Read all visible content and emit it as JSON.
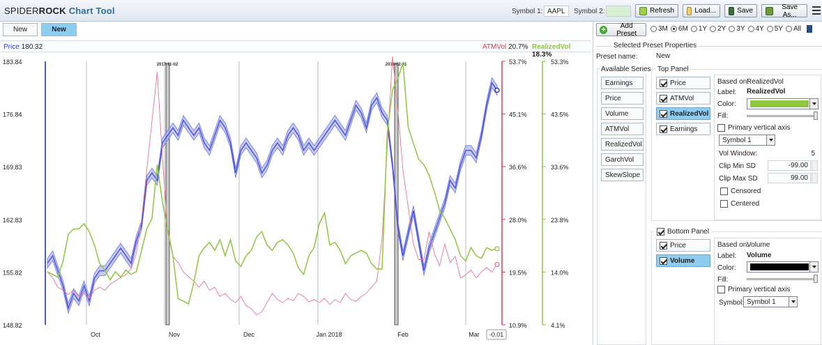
{
  "app": {
    "logo_part1": "SPIDER",
    "logo_part2": "ROCK",
    "logo_part3": "Chart Tool"
  },
  "toolbar": {
    "symbol1_label": "Symbol 1:",
    "symbol1_value": "AAPL",
    "symbol2_label": "Symbol 2:",
    "symbol2_value": "",
    "refresh_label": "Refresh",
    "load_label": "Load...",
    "save_label": "Save",
    "saveas_label": "Save As..."
  },
  "tabs": [
    {
      "label": "New"
    },
    {
      "label": "New"
    }
  ],
  "legend": {
    "price_label": "Price",
    "price_value": "180.32",
    "atmvol_label": "ATMVol",
    "atmvol_value": "20.7%",
    "realizedvol_label": "RealizedVol",
    "realizedvol_value": "18.3%",
    "price_color": "#2b3fd8",
    "atmvol_color": "#e0364a",
    "realizedvol_color": "#8dc63f"
  },
  "chart_data": {
    "type": "line",
    "x_tick_labels": [
      "Oct",
      "Nov",
      "Dec",
      "Jan 2018",
      "Feb",
      "Mar"
    ],
    "y_left_ticks": [
      "183.84",
      "176.84",
      "169.83",
      "162.83",
      "155.82",
      "148.82"
    ],
    "y_mid_ticks": [
      "53.7%",
      "45.1%",
      "36.6%",
      "28.0%",
      "19.5%",
      "10.9%"
    ],
    "y_right_ticks": [
      "53.3%",
      "43.5%",
      "33.6%",
      "23.8%",
      "14.0%",
      "4.1%"
    ],
    "y_left_range": [
      148.82,
      183.84
    ],
    "y_mid_range": [
      10.9,
      53.7
    ],
    "y_right_range": [
      4.1,
      53.3
    ],
    "earnings_markers": [
      {
        "label": "2017-11-02"
      },
      {
        "label": "2018-02-01"
      }
    ],
    "crosshair_value": "-0.01",
    "series": [
      {
        "name": "Price",
        "axis": "left",
        "color": "#4a55e0",
        "band": true,
        "values": [
          157,
          158,
          156,
          154,
          151,
          153,
          152,
          154,
          152,
          155,
          156,
          156,
          157,
          158,
          159,
          158,
          157,
          160,
          162,
          168,
          169,
          168,
          173,
          174,
          175,
          174,
          176,
          175,
          174,
          175,
          173,
          172,
          174,
          176,
          175,
          173,
          169,
          172,
          173,
          172,
          171,
          169,
          170,
          172,
          173,
          172,
          174,
          175,
          174,
          172,
          173,
          172,
          173,
          174,
          175,
          176,
          175,
          174,
          176,
          178,
          177,
          175,
          178,
          179,
          177,
          176,
          170,
          162,
          158,
          161,
          164,
          160,
          156,
          159,
          161,
          163,
          165,
          168,
          167,
          170,
          172,
          172,
          171,
          174,
          178,
          181,
          180
        ]
      },
      {
        "name": "ATMVol",
        "axis": "mid",
        "color": "#e8758a",
        "values": [
          19.5,
          18.5,
          17,
          16.5,
          15.8,
          16.5,
          15.5,
          16,
          15.2,
          16.5,
          17,
          16.5,
          17.5,
          18,
          18.6,
          19,
          20,
          22.5,
          28,
          36,
          44,
          52,
          38,
          26,
          22,
          21,
          19.5,
          18.7,
          18,
          17,
          18,
          16.5,
          17,
          15.5,
          16,
          15,
          14.5,
          15.5,
          14,
          13.5,
          12.5,
          13,
          14.5,
          16,
          15,
          14.5,
          15.2,
          14.8,
          16,
          15.5,
          14.6,
          15,
          14.5,
          15.2,
          14.2,
          15,
          14.5,
          16,
          15,
          14.7,
          15.5,
          16,
          17,
          18,
          25,
          40,
          54.5,
          46,
          36,
          30,
          24,
          21.5,
          21.5,
          26,
          22.5,
          20.5,
          24,
          21,
          22,
          18.5,
          19,
          19.8,
          18.5,
          19.5,
          20.2,
          19.5,
          20.7
        ]
      },
      {
        "name": "RealizedVol",
        "axis": "right",
        "color": "#8dc63f",
        "values": [
          14,
          13.5,
          13,
          16,
          21,
          22,
          22,
          23,
          21.5,
          19,
          15.5,
          14.3,
          12.5,
          14,
          13,
          14.3,
          13.5,
          14,
          18,
          22,
          24,
          34,
          27,
          22,
          17,
          9,
          8.5,
          8,
          12,
          17,
          18.5,
          19.5,
          18,
          20,
          17,
          20,
          16,
          15,
          17,
          18,
          20.5,
          21.5,
          19,
          18,
          19.5,
          20,
          19,
          17.5,
          14.7,
          13.5,
          17,
          18.5,
          23,
          25,
          19,
          19.5,
          18,
          15.5,
          17,
          17.5,
          18,
          17.5,
          15.5,
          14.5,
          14.5,
          40,
          48,
          50,
          53,
          41,
          38,
          35,
          34,
          32,
          29,
          25.5,
          24,
          22,
          20,
          17,
          16,
          18.5,
          17,
          16.5,
          18.5,
          18,
          18.3
        ]
      }
    ]
  },
  "panel": {
    "add_preset_label": "Add Preset",
    "ranges": [
      "3M",
      "6M",
      "1Y",
      "2Y",
      "3Y",
      "4Y",
      "5Y",
      "All"
    ],
    "selected_range": "6M",
    "selected_preset_title": "Selected Preset Properties",
    "preset_name_label": "Preset name:",
    "preset_name_value": "New",
    "available_series_title": "Available Series",
    "available_series": [
      "Earnings",
      "Price",
      "Volume",
      "ATMVol",
      "RealizedVol",
      "GarchVol",
      "SkewSlope"
    ],
    "top_panel_title": "Top Panel",
    "top_items": [
      {
        "label": "Price"
      },
      {
        "label": "ATMVol"
      },
      {
        "label": "RealizedVol"
      },
      {
        "label": "Earnings"
      }
    ],
    "top_props": {
      "based_on_label": "Based on:",
      "based_on_value": "RealizedVol",
      "label_label": "Label:",
      "label_value": "RealizedVol",
      "color_label": "Color:",
      "color_value": "#8dc63f",
      "fill_label": "Fill:",
      "fill_level": 1.0,
      "primary_axis_label": "Primary vertical axis",
      "symbol_value": "Symbol 1",
      "vol_window_label": "Vol Window:",
      "vol_window_value": "5",
      "clip_min_label": "Clip Min SD",
      "clip_min_value": "-99.00",
      "clip_max_label": "Clip Max SD",
      "clip_max_value": "99.00",
      "censored_label": "Censored",
      "centered_label": "Centered"
    },
    "bottom_panel_title": "Bottom Panel",
    "bottom_items": [
      {
        "label": "Price"
      },
      {
        "label": "Volume"
      }
    ],
    "bottom_props": {
      "based_on_label": "Based on:",
      "based_on_value": "Volume",
      "label_label": "Label:",
      "label_value": "Volume",
      "color_label": "Color:",
      "color_value": "#000000",
      "fill_label": "Fill:",
      "fill_level": 1.0,
      "primary_axis_label": "Primary vertical axis",
      "symbol_label": "Symbol:",
      "symbol_value": "Symbol 1"
    }
  }
}
